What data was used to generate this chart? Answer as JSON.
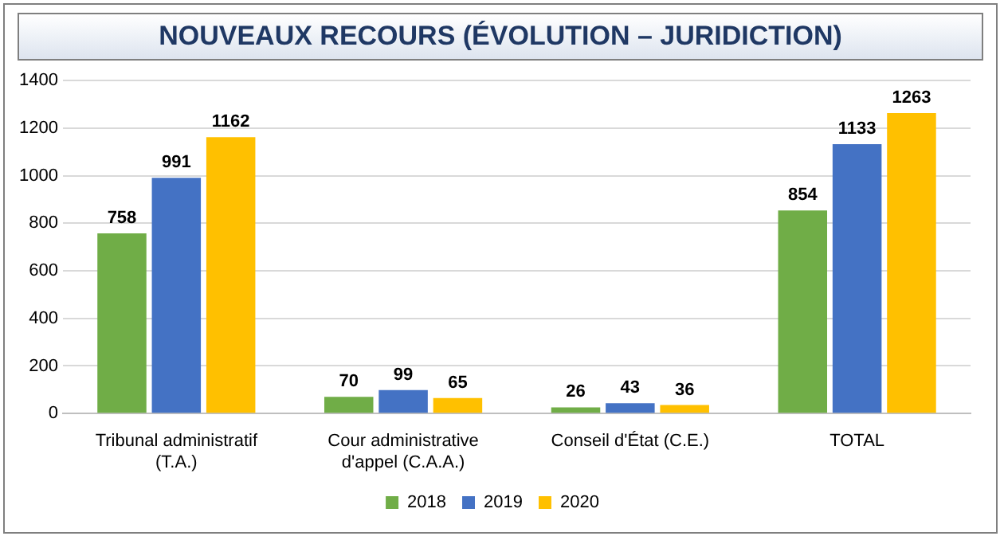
{
  "chart_data": {
    "type": "bar",
    "title": "NOUVEAUX RECOURS (ÉVOLUTION – JURIDICTION)",
    "categories": [
      "Tribunal administratif (T.A.)",
      "Cour administrative d'appel (C.A.A.)",
      "Conseil d'État (C.E.)",
      "TOTAL"
    ],
    "series": [
      {
        "name": "2018",
        "color": "#70ad47",
        "values": [
          758,
          70,
          26,
          854
        ]
      },
      {
        "name": "2019",
        "color": "#4472c4",
        "values": [
          991,
          99,
          43,
          1133
        ]
      },
      {
        "name": "2020",
        "color": "#ffc000",
        "values": [
          1162,
          65,
          36,
          1263
        ]
      }
    ],
    "ylim": [
      0,
      1400
    ],
    "yticks": [
      0,
      200,
      400,
      600,
      800,
      1000,
      1200,
      1400
    ],
    "grid": "y",
    "legend": "bottom",
    "data_labels": true
  }
}
